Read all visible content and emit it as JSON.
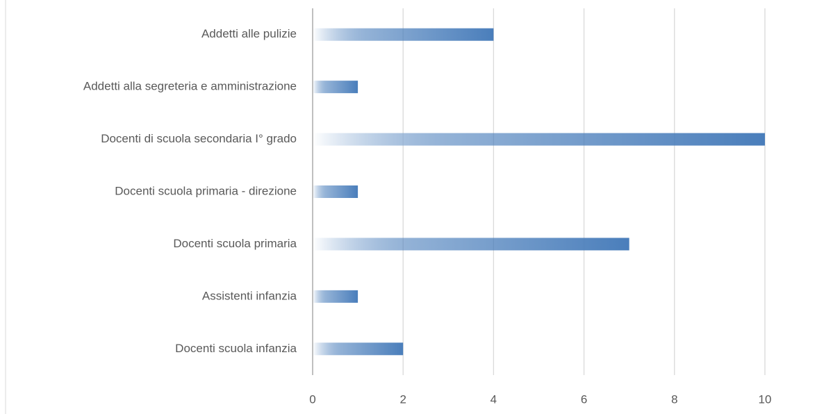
{
  "chart_data": {
    "type": "hbar",
    "categories": [
      "Addetti alle pulizie",
      "Addetti alla segreteria e amministrazione",
      "Docenti di scuola secondaria I° grado",
      "Docenti scuola primaria - direzione",
      "Docenti scuola primaria",
      "Assistenti infanzia",
      "Docenti scuola infanzia"
    ],
    "values": [
      4,
      1,
      10,
      1,
      7,
      1,
      2
    ],
    "color": "#4a7ebb",
    "xlim": [
      0,
      10
    ],
    "xticks": [
      0,
      2,
      4,
      6,
      8,
      10
    ],
    "grid": true
  }
}
